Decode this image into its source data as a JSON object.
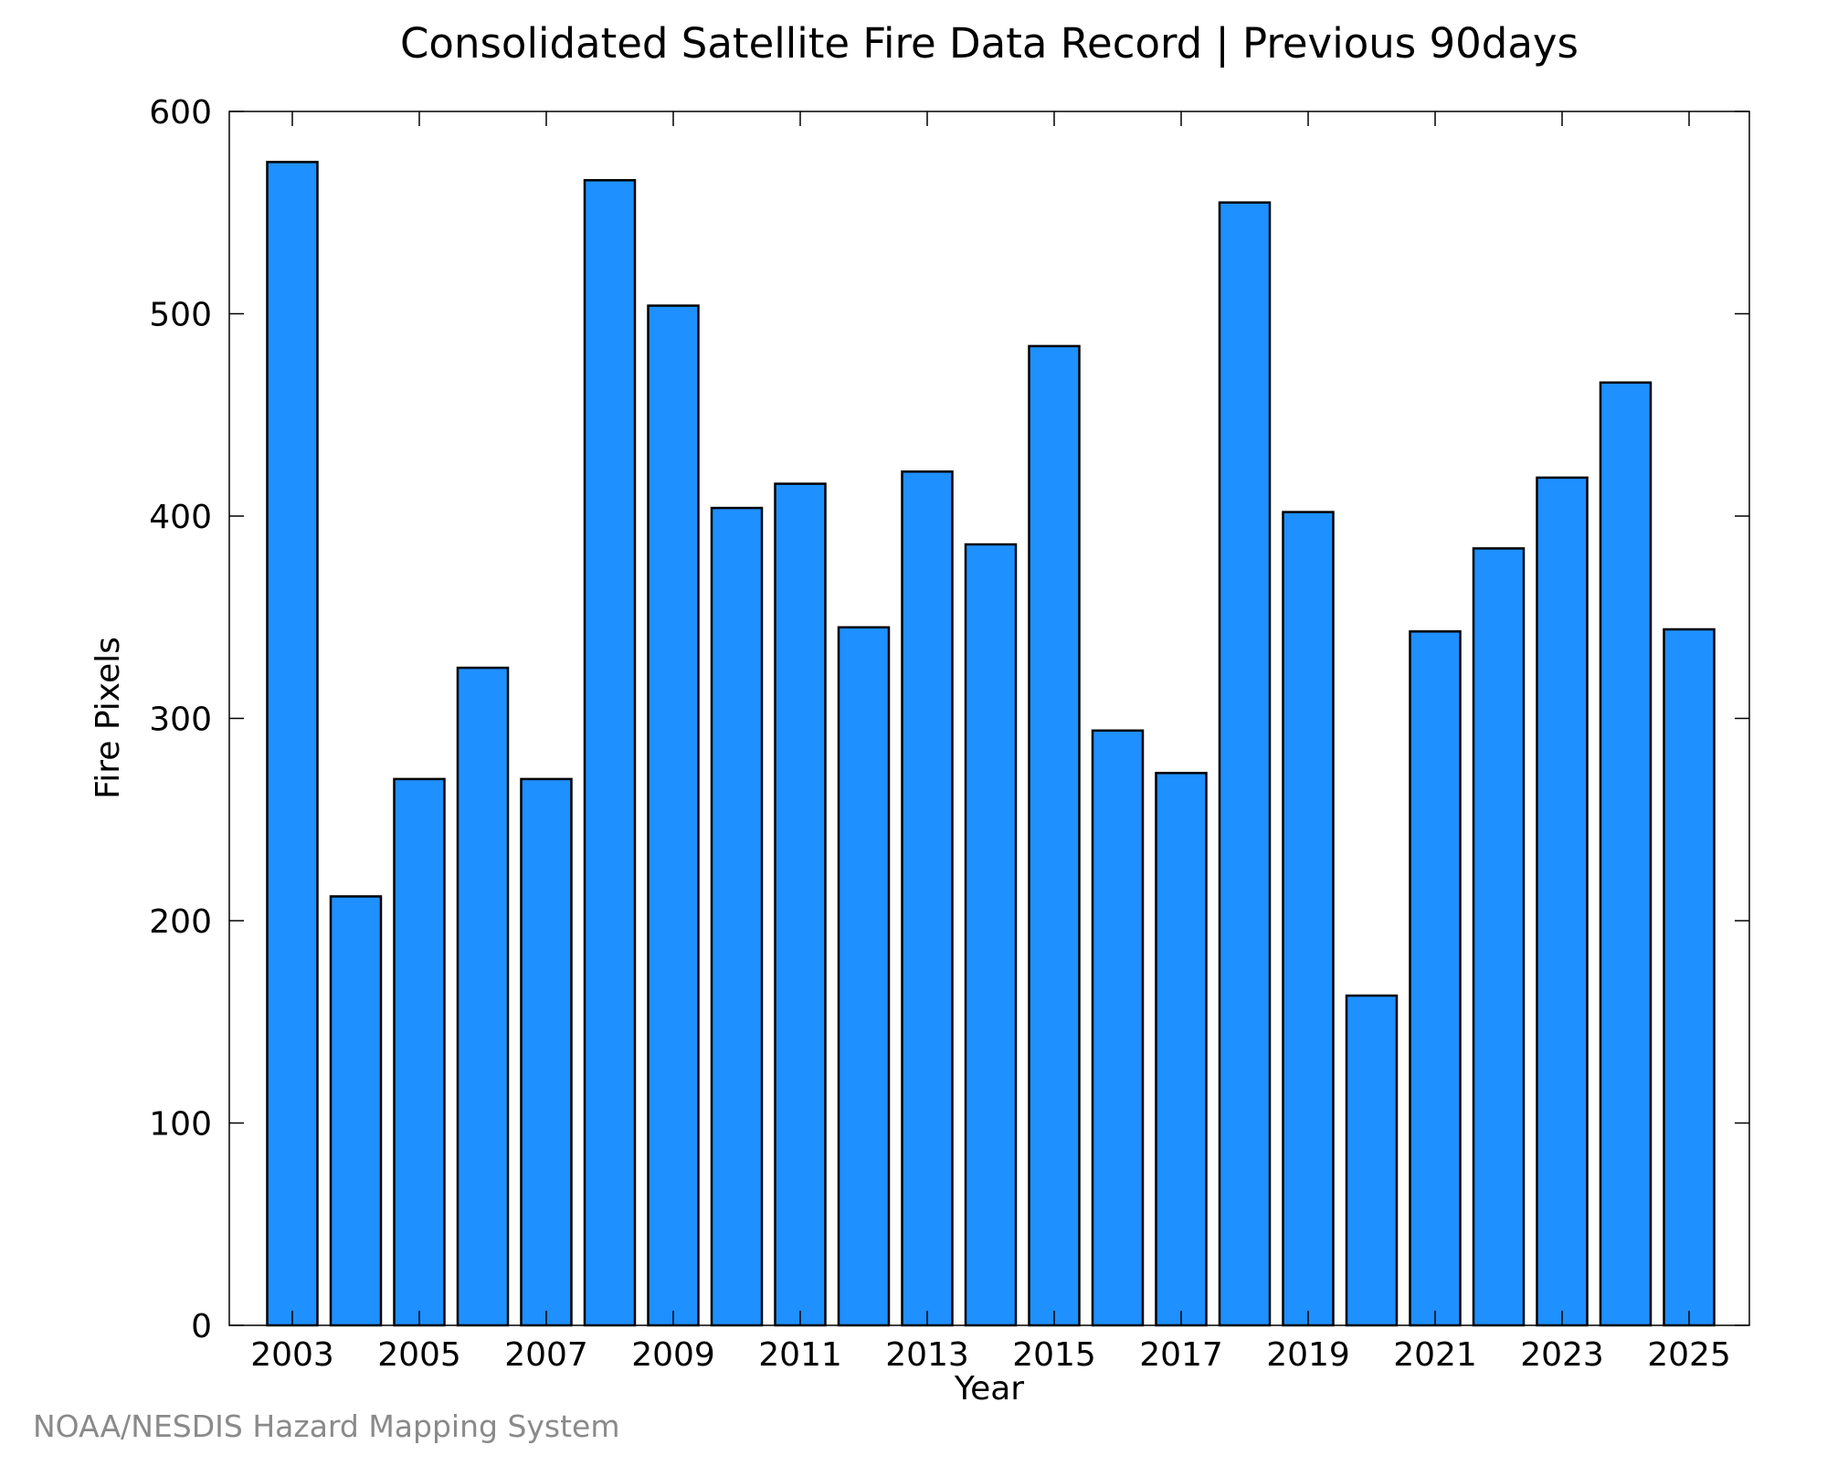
{
  "chart_data": {
    "type": "bar",
    "title": "Consolidated Satellite Fire Data Record | Previous 90days",
    "xlabel": "Year",
    "ylabel": "Fire Pixels",
    "categories": [
      "2003",
      "2004",
      "2005",
      "2006",
      "2007",
      "2008",
      "2009",
      "2010",
      "2011",
      "2012",
      "2013",
      "2014",
      "2015",
      "2016",
      "2017",
      "2018",
      "2019",
      "2020",
      "2021",
      "2022",
      "2023",
      "2024",
      "2025"
    ],
    "values": [
      575,
      212,
      270,
      325,
      270,
      566,
      504,
      404,
      416,
      345,
      422,
      386,
      484,
      294,
      273,
      555,
      402,
      163,
      343,
      384,
      419,
      466,
      344
    ],
    "x_tick_labels": [
      "2003",
      "2005",
      "2007",
      "2009",
      "2011",
      "2013",
      "2015",
      "2017",
      "2019",
      "2021",
      "2023",
      "2025"
    ],
    "y_ticks": [
      0,
      100,
      200,
      300,
      400,
      500,
      600
    ],
    "ylim": [
      0,
      600
    ],
    "grid": false,
    "legend": "none",
    "bar_color": "#1E90FF",
    "bar_edge_color": "#000000"
  },
  "footer": {
    "credit": "NOAA/NESDIS Hazard Mapping System"
  }
}
